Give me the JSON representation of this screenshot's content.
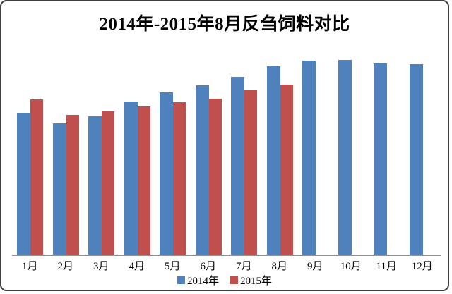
{
  "chart_data": {
    "type": "bar",
    "title": "2014年-2015年8月反刍饲料对比",
    "categories": [
      "1月",
      "2月",
      "3月",
      "4月",
      "5月",
      "6月",
      "7月",
      "8月",
      "9月",
      "10月",
      "11月",
      "12月"
    ],
    "series": [
      {
        "name": "2014年",
        "color": "#4F81BD",
        "values": [
          201,
          186,
          196,
          217,
          230,
          240,
          252,
          267,
          275,
          276,
          271,
          270
        ]
      },
      {
        "name": "2015年",
        "color": "#C0504D",
        "values": [
          220,
          198,
          203,
          210,
          216,
          221,
          233,
          241,
          null,
          null,
          null,
          null
        ]
      }
    ],
    "xlabel": "",
    "ylabel": "",
    "ylim": [
      0,
      300
    ],
    "y_axis_note": "no y-axis ticks, labels or gridlines visible; values are relative bar heights (plot-area pixels)",
    "grid": false,
    "legend_position": "bottom-center"
  },
  "colors": {
    "bar_2014": "#4F81BD",
    "bar_2015": "#C0504D",
    "axis_line": "#919191",
    "chart_border": "#3F3F3F",
    "background": "#FFFFFF",
    "text": "#000000"
  }
}
